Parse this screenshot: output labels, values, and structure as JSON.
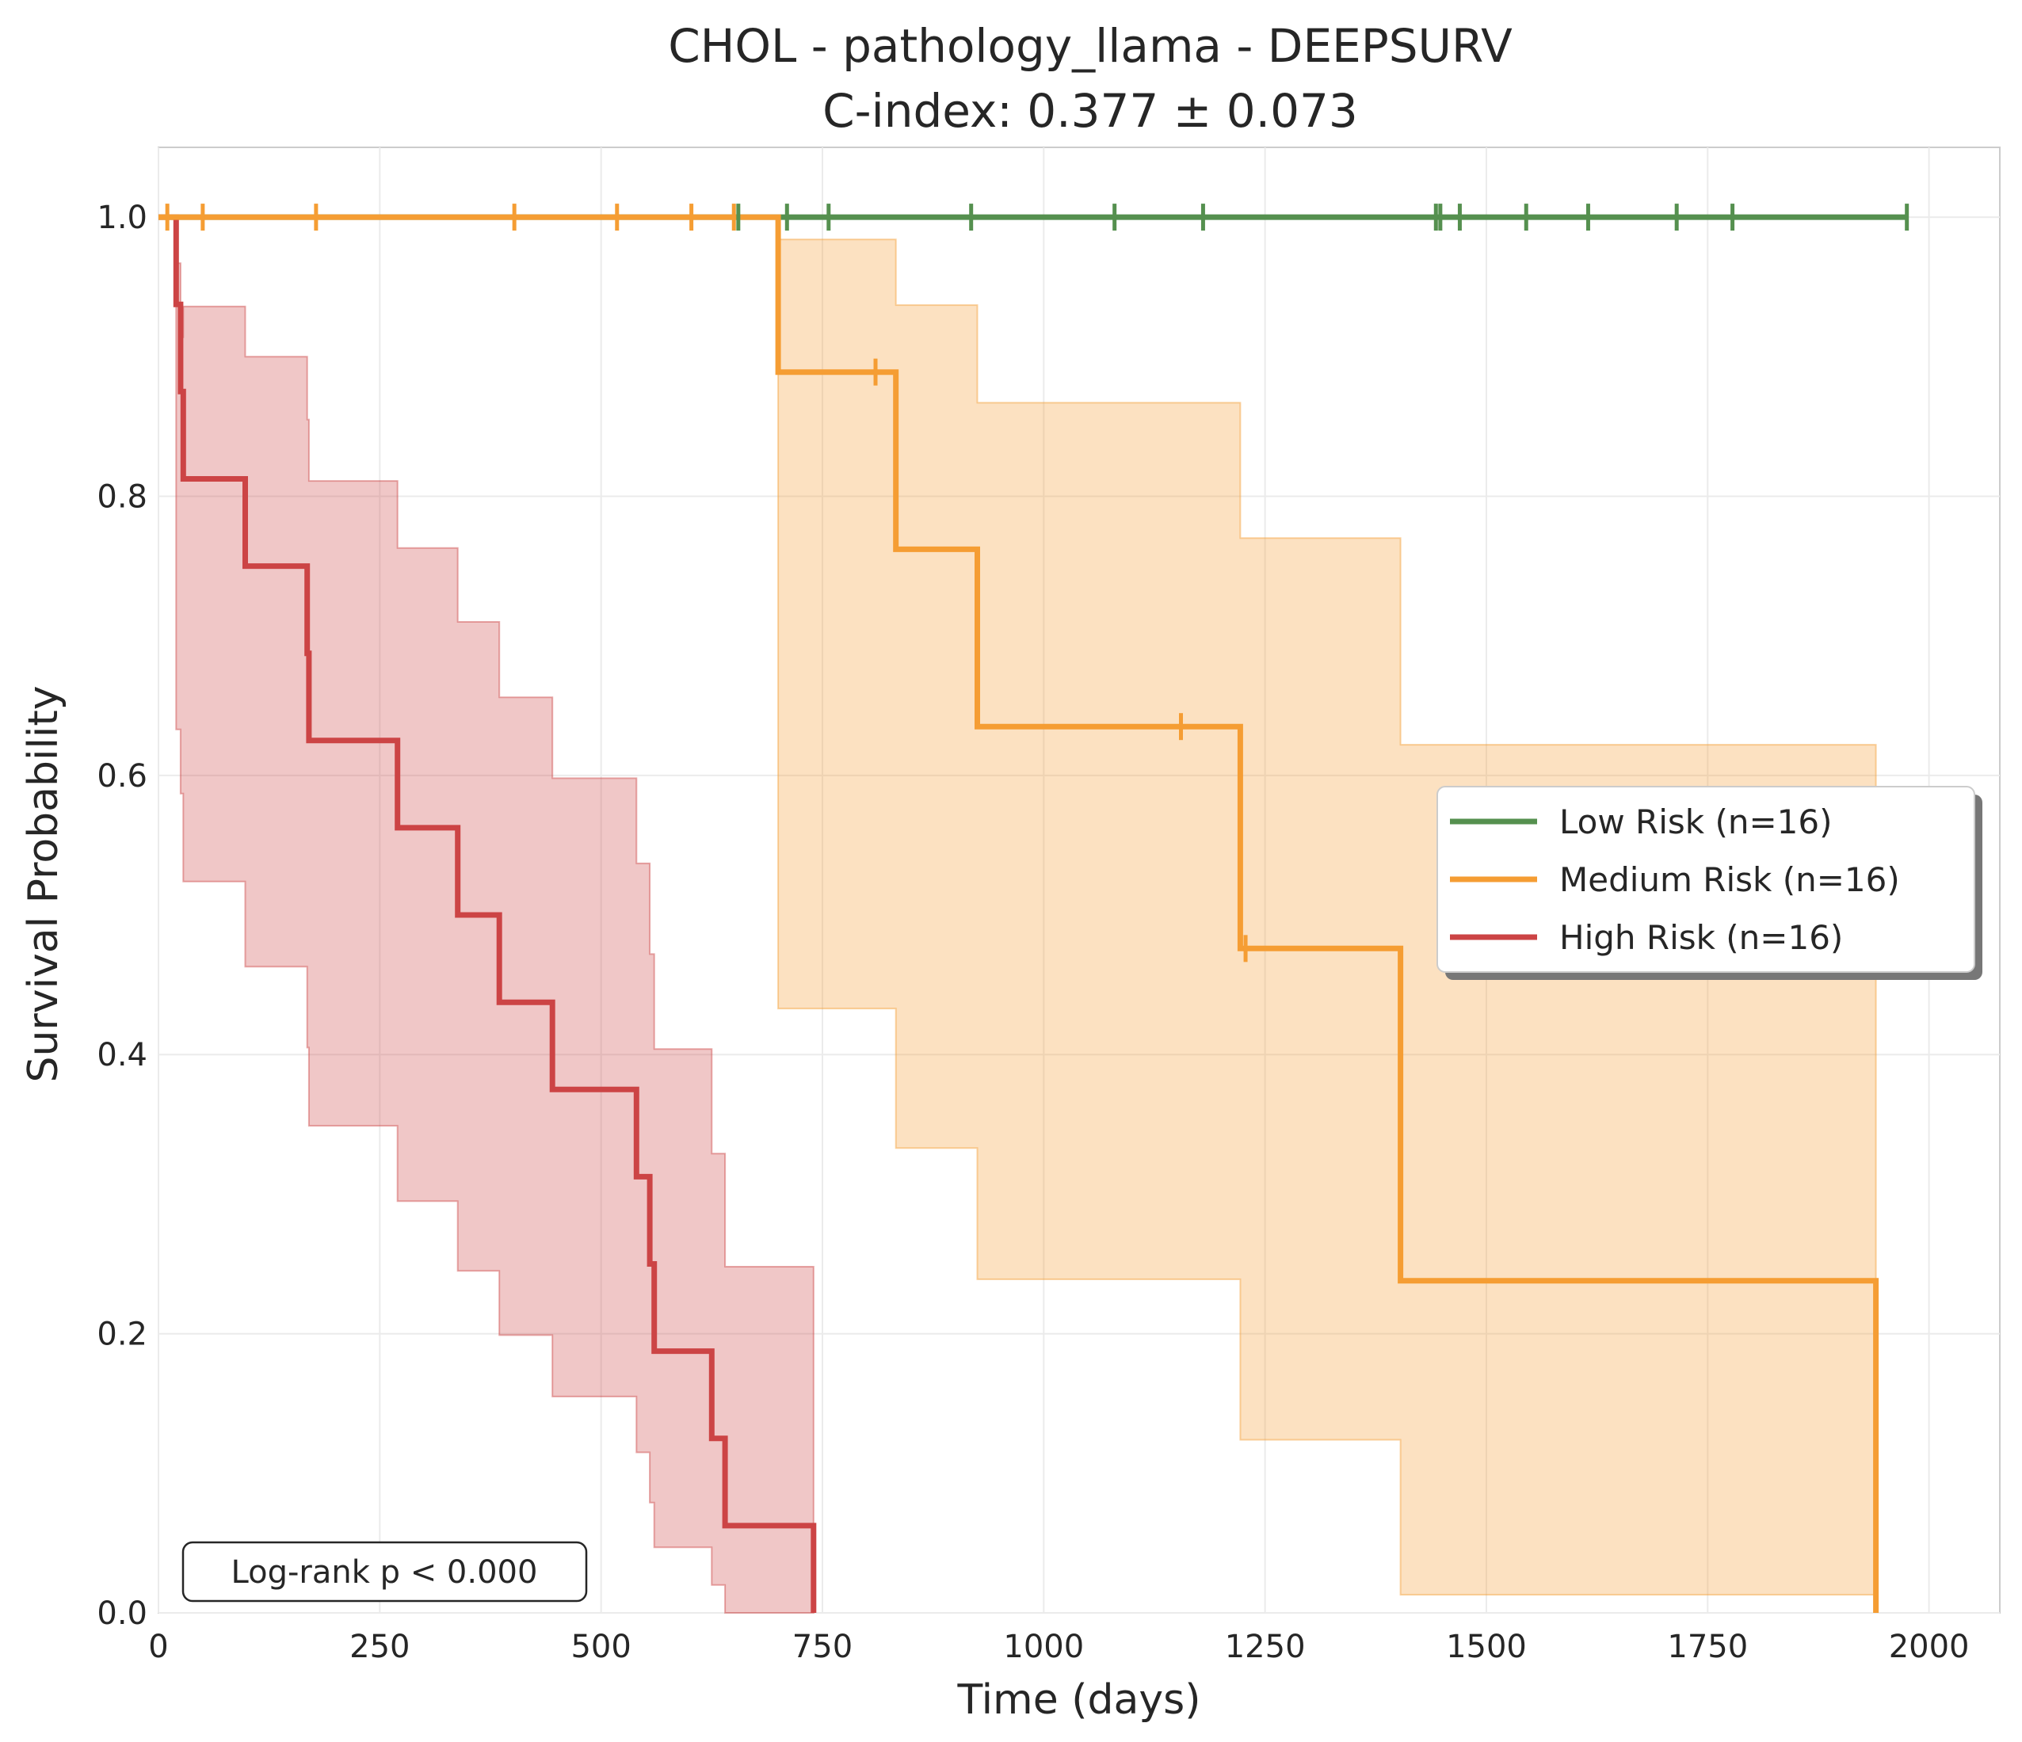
{
  "chart_data": {
    "type": "line",
    "title": "CHOL - pathology_llama - DEEPSURV",
    "subtitle": "C-index: 0.377 ± 0.073",
    "xlabel": "Time (days)",
    "ylabel": "Survival Probability",
    "xlim": [
      0,
      2080
    ],
    "ylim": [
      0,
      1.05
    ],
    "xticks": [
      0,
      250,
      500,
      750,
      1000,
      1250,
      1500,
      1750,
      2000
    ],
    "xtick_labels": [
      "0",
      "250",
      "500",
      "750",
      "1000",
      "1250",
      "1500",
      "1750",
      "2000"
    ],
    "yticks": [
      0,
      0.2,
      0.4,
      0.6,
      0.8,
      1.0
    ],
    "ytick_labels": [
      "0.0",
      "0.2",
      "0.4",
      "0.6",
      "0.8",
      "1.0"
    ],
    "grid": true,
    "legend_position": "center-right",
    "annotation": "Log-rank p < 0.000",
    "series": [
      {
        "name": "Low Risk (n=16)",
        "color": "#55904f",
        "steps": [
          [
            0,
            1.0
          ],
          [
            1975,
            1.0
          ]
        ],
        "censor_times": [
          655,
          710,
          757,
          918,
          1080,
          1180,
          1443,
          1448,
          1470,
          1545,
          1615,
          1715,
          1778,
          1975
        ],
        "ci": []
      },
      {
        "name": "Medium Risk (n=16)",
        "color": "#f59d33",
        "steps": [
          [
            0,
            1.0
          ],
          [
            700,
            0.889
          ],
          [
            833,
            0.762
          ],
          [
            925,
            0.635
          ],
          [
            1222,
            0.476
          ],
          [
            1403,
            0.238
          ],
          [
            1940,
            0.0
          ]
        ],
        "censor_times": [
          10,
          50,
          178,
          402,
          518,
          602,
          650,
          810,
          1155,
          1228
        ],
        "ci": [
          [
            0,
            1.0,
            1.0
          ],
          [
            700,
            0.433,
            0.984
          ],
          [
            833,
            0.333,
            0.937
          ],
          [
            925,
            0.239,
            0.867
          ],
          [
            1222,
            0.124,
            0.77
          ],
          [
            1403,
            0.013,
            0.622
          ],
          [
            1940,
            0.013,
            0.622
          ]
        ]
      },
      {
        "name": "High Risk (n=16)",
        "color": "#cc4445",
        "steps": [
          [
            0,
            1.0
          ],
          [
            20,
            0.9375
          ],
          [
            25,
            0.875
          ],
          [
            28,
            0.8125
          ],
          [
            98,
            0.75
          ],
          [
            168,
            0.6875
          ],
          [
            170,
            0.625
          ],
          [
            270,
            0.5625
          ],
          [
            338,
            0.5
          ],
          [
            385,
            0.4375
          ],
          [
            445,
            0.375
          ],
          [
            540,
            0.3125
          ],
          [
            555,
            0.25
          ],
          [
            560,
            0.1875
          ],
          [
            625,
            0.125
          ],
          [
            640,
            0.0625
          ],
          [
            740,
            0.0
          ]
        ],
        "censor_times": [],
        "ci": [
          [
            0,
            1.0,
            1.0
          ],
          [
            20,
            0.633,
            0.967
          ],
          [
            25,
            0.587,
            0.914
          ],
          [
            28,
            0.524,
            0.936
          ],
          [
            98,
            0.463,
            0.9
          ],
          [
            168,
            0.405,
            0.855
          ],
          [
            170,
            0.349,
            0.811
          ],
          [
            270,
            0.295,
            0.763
          ],
          [
            338,
            0.245,
            0.71
          ],
          [
            385,
            0.199,
            0.656
          ],
          [
            445,
            0.155,
            0.598
          ],
          [
            540,
            0.115,
            0.537
          ],
          [
            555,
            0.079,
            0.472
          ],
          [
            560,
            0.047,
            0.404
          ],
          [
            625,
            0.02,
            0.329
          ],
          [
            640,
            0.0,
            0.248
          ],
          [
            740,
            0.0,
            0.248
          ]
        ]
      }
    ]
  }
}
